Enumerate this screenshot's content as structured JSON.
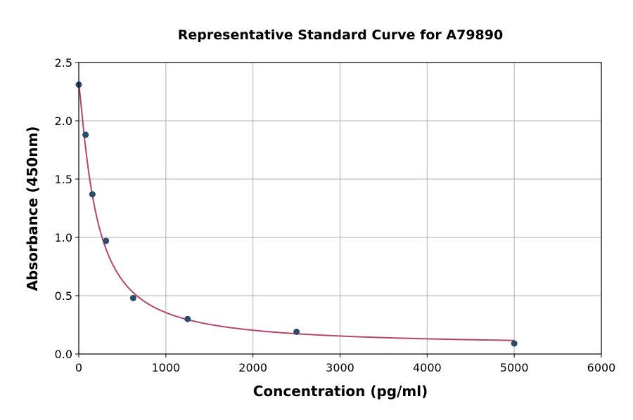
{
  "chart_data": {
    "type": "scatter",
    "title": "Representative Standard Curve for A79890",
    "xlabel": "Concentration (pg/ml)",
    "ylabel": "Absorbance (450nm)",
    "xlim": [
      0,
      6000
    ],
    "ylim": [
      0,
      2.5
    ],
    "xticks": [
      "0",
      "1000",
      "2000",
      "3000",
      "4000",
      "5000",
      "6000"
    ],
    "yticks": [
      "0.0",
      "0.5",
      "1.0",
      "1.5",
      "2.0",
      "2.5"
    ],
    "grid": true,
    "series": [
      {
        "x": [
          0,
          78.125,
          156.25,
          312.5,
          625,
          1250,
          2500,
          5000
        ],
        "y": [
          2.31,
          1.88,
          1.37,
          0.97,
          0.48,
          0.3,
          0.19,
          0.09
        ]
      }
    ],
    "fit_curve": true,
    "colors": {
      "points": "#2e4a6b",
      "curve": "#b5456b",
      "grid": "#b0b0b0"
    }
  }
}
